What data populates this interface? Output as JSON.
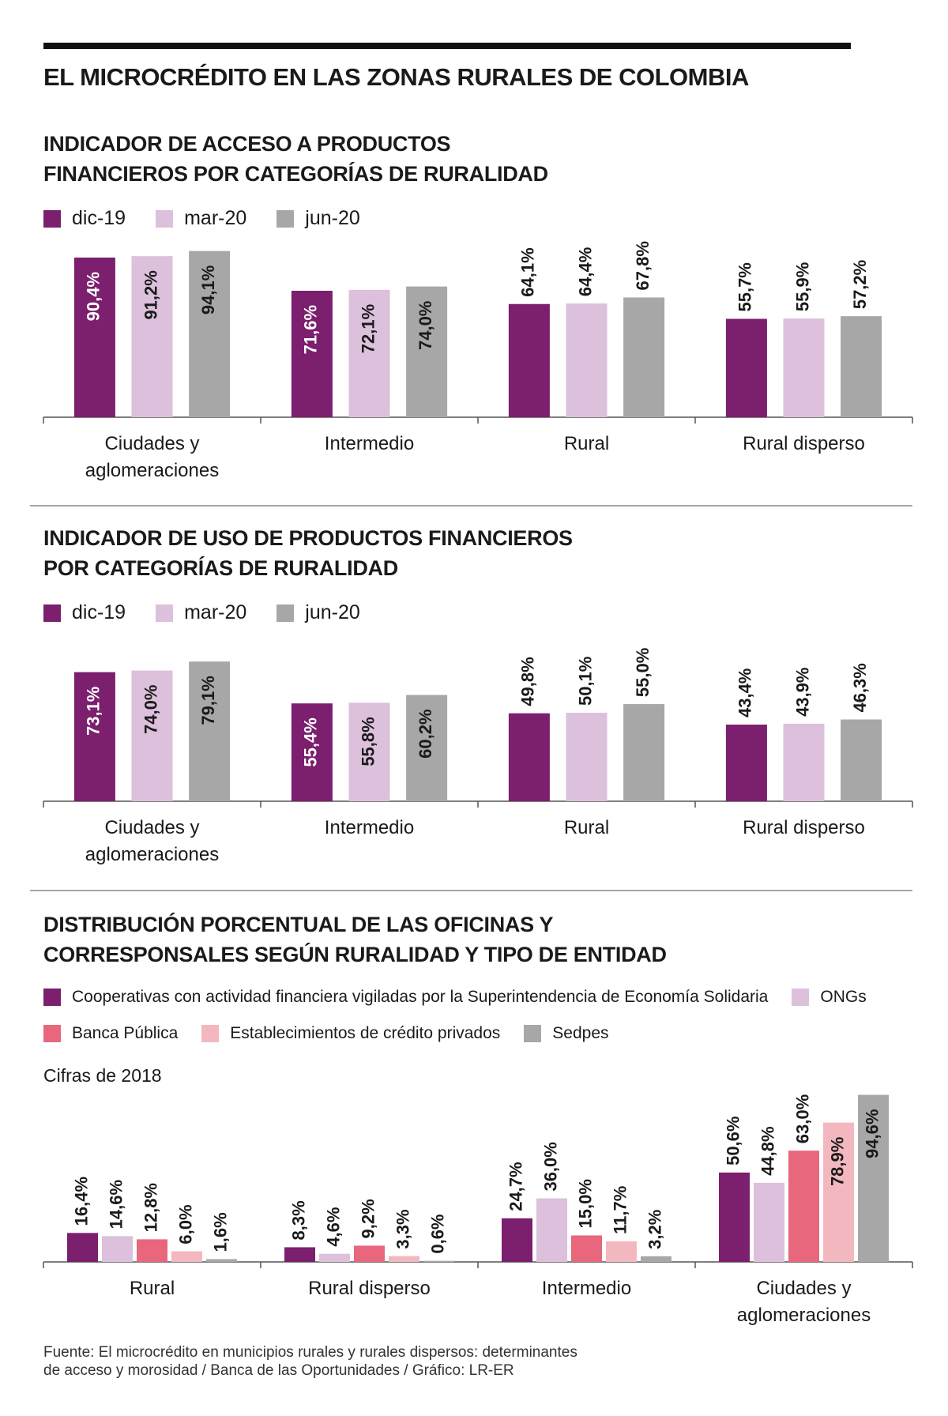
{
  "title": "EL MICROCRÉDITO EN LAS ZONAS RURALES DE COLOMBIA",
  "chart_data": [
    {
      "type": "bar",
      "title": "INDICADOR DE ACCESO A PRODUCTOS\nFINANCIEROS POR CATEGORÍAS DE RURALIDAD",
      "categories": [
        "Ciudades y\naglomeraciones",
        "Intermedio",
        "Rural",
        "Rural disperso"
      ],
      "series": [
        {
          "name": "dic-19",
          "color": "#7b1f6e",
          "values": [
            90.4,
            71.6,
            64.1,
            55.7
          ],
          "value_labels": [
            "90,4%",
            "71,6%",
            "64,1%",
            "55,7%"
          ]
        },
        {
          "name": "mar-20",
          "color": "#dcc0dc",
          "values": [
            91.2,
            72.1,
            64.4,
            55.9
          ],
          "value_labels": [
            "91,2%",
            "72,1%",
            "64,4%",
            "55,9%"
          ]
        },
        {
          "name": "jun-20",
          "color": "#a8a7a8",
          "values": [
            94.1,
            74.0,
            67.8,
            57.2
          ],
          "value_labels": [
            "94,1%",
            "74,0%",
            "67,8%",
            "57,2%"
          ]
        }
      ]
    },
    {
      "type": "bar",
      "title": "INDICADOR DE USO DE PRODUCTOS FINANCIEROS\nPOR CATEGORÍAS DE RURALIDAD",
      "categories": [
        "Ciudades y\naglomeraciones",
        "Intermedio",
        "Rural",
        "Rural disperso"
      ],
      "series": [
        {
          "name": "dic-19",
          "color": "#7b1f6e",
          "values": [
            73.1,
            55.4,
            49.8,
            43.4
          ],
          "value_labels": [
            "73,1%",
            "55,4%",
            "49,8%",
            "43,4%"
          ]
        },
        {
          "name": "mar-20",
          "color": "#dcc0dc",
          "values": [
            74.0,
            55.8,
            50.1,
            43.9
          ],
          "value_labels": [
            "74,0%",
            "55,8%",
            "50,1%",
            "43,9%"
          ]
        },
        {
          "name": "jun-20",
          "color": "#a8a7a8",
          "values": [
            79.1,
            60.2,
            55.0,
            46.3
          ],
          "value_labels": [
            "79,1%",
            "60,2%",
            "55,0%",
            "46,3%"
          ]
        }
      ]
    },
    {
      "type": "bar",
      "title": "DISTRIBUCIÓN PORCENTUAL DE LAS OFICINAS Y\nCORRESPONSALES SEGÚN RURALIDAD Y TIPO DE ENTIDAD",
      "note": "Cifras de 2018",
      "categories": [
        "Rural",
        "Rural disperso",
        "Intermedio",
        "Ciudades y\naglomeraciones"
      ],
      "series": [
        {
          "name": "Cooperativas con actividad financiera vigiladas por la Superintendencia de Economía Solidaria",
          "color": "#7b1f6e",
          "values": [
            16.4,
            8.3,
            24.7,
            50.6
          ],
          "value_labels": [
            "16,4%",
            "8,3%",
            "24,7%",
            "50,6%"
          ]
        },
        {
          "name": "ONGs",
          "color": "#dcc0dc",
          "values": [
            14.6,
            4.6,
            36.0,
            44.8
          ],
          "value_labels": [
            "14,6%",
            "4,6%",
            "36,0%",
            "44,8%"
          ]
        },
        {
          "name": "Banca Pública",
          "color": "#e8677d",
          "values": [
            12.8,
            9.2,
            15.0,
            63.0
          ],
          "value_labels": [
            "12,8%",
            "9,2%",
            "15,0%",
            "63,0%"
          ]
        },
        {
          "name": "Establecimientos de crédito privados",
          "color": "#f3b8bf",
          "values": [
            6.0,
            3.3,
            11.7,
            78.9
          ],
          "value_labels": [
            "6,0%",
            "3,3%",
            "11,7%",
            "78,9%"
          ]
        },
        {
          "name": "Sedpes",
          "color": "#a8a7a8",
          "values": [
            1.6,
            0.6,
            3.2,
            94.6
          ],
          "value_labels": [
            "1,6%",
            "0,6%",
            "3,2%",
            "94,6%"
          ]
        }
      ]
    }
  ],
  "source": "Fuente: El microcrédito en municipios rurales y rurales dispersos: determinantes\nde acceso y morosidad / Banca de las Oportunidades / Gráfico: LR-ER"
}
